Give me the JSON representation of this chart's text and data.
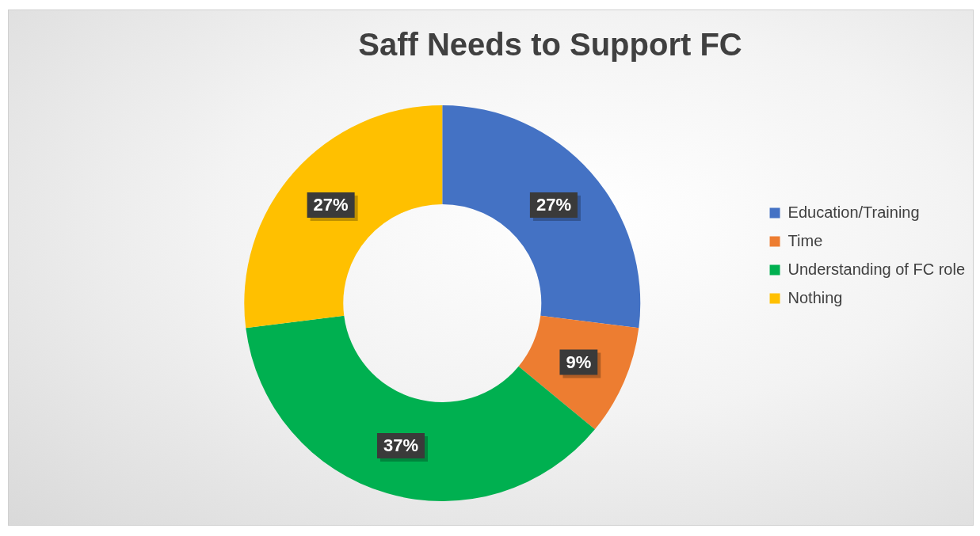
{
  "chart_data": {
    "type": "donut",
    "title": "Saff Needs to Support FC",
    "categories": [
      "Education/Training",
      "Time",
      "Understanding of FC role",
      "Nothing"
    ],
    "values": [
      27,
      9,
      37,
      27
    ],
    "value_labels": [
      "27%",
      "9%",
      "37%",
      "27%"
    ],
    "colors": [
      "#4472c4",
      "#ed7d31",
      "#00b050",
      "#ffc000"
    ],
    "legend": "right"
  }
}
